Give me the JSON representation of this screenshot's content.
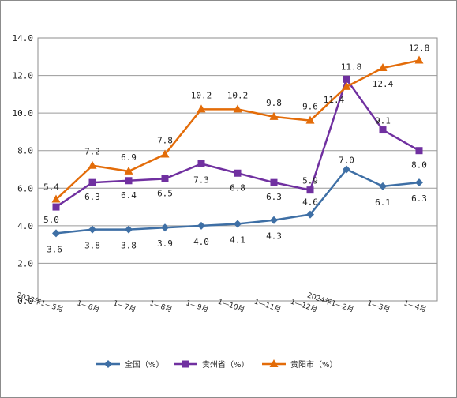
{
  "chart_data": {
    "type": "line",
    "title": "",
    "xlabel": "",
    "ylabel": "",
    "categories": [
      "2023年1—5月",
      "1—6月",
      "1—7月",
      "1—8月",
      "1—9月",
      "1—10月",
      "1—11月",
      "1—12月",
      "2024年1—2月",
      "1—3月",
      "1—4月"
    ],
    "ylim": [
      0,
      14
    ],
    "yticks": [
      "0.0",
      "2.0",
      "4.0",
      "6.0",
      "8.0",
      "10.0",
      "12.0",
      "14.0"
    ],
    "grid": true,
    "legend_position": "bottom",
    "series": [
      {
        "name": "全国（%）",
        "color": "#3e6fa5",
        "marker": "diamond",
        "values": [
          3.6,
          3.8,
          3.8,
          3.9,
          4.0,
          4.1,
          4.3,
          4.6,
          7.0,
          6.1,
          6.3
        ],
        "labels": [
          "3.6",
          "3.8",
          "3.8",
          "3.9",
          "4.0",
          "4.1",
          "4.3",
          "4.6",
          "7.0",
          "6.1",
          "6.3"
        ]
      },
      {
        "name": "贵州省（%）",
        "color": "#7030a0",
        "marker": "square",
        "values": [
          5.0,
          6.3,
          6.4,
          6.5,
          7.3,
          6.8,
          6.3,
          5.9,
          11.8,
          9.1,
          8.0
        ],
        "labels": [
          "5.0",
          "6.3",
          "6.4",
          "6.5",
          "7.3",
          "6.8",
          "6.3",
          "5.9",
          "11.8",
          "9.1",
          "8.0"
        ]
      },
      {
        "name": "贵阳市（%）",
        "color": "#e36c09",
        "marker": "triangle",
        "values": [
          5.4,
          7.2,
          6.9,
          7.8,
          10.2,
          10.2,
          9.8,
          9.6,
          11.4,
          12.4,
          12.8
        ],
        "labels": [
          "5.4",
          "7.2",
          "6.9",
          "7.8",
          "10.2",
          "10.2",
          "9.8",
          "9.6",
          "11.4",
          "12.4",
          "12.8"
        ]
      }
    ]
  }
}
